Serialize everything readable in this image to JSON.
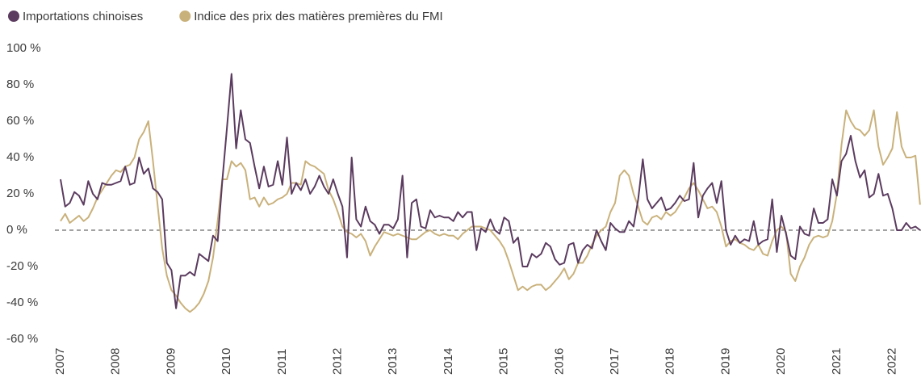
{
  "chart_data": {
    "type": "line",
    "categories": [
      "2007",
      null,
      null,
      null,
      null,
      null,
      null,
      null,
      null,
      null,
      null,
      null,
      "2008",
      null,
      null,
      null,
      null,
      null,
      null,
      null,
      null,
      null,
      null,
      null,
      "2009",
      null,
      null,
      null,
      null,
      null,
      null,
      null,
      null,
      null,
      null,
      null,
      "2010",
      null,
      null,
      null,
      null,
      null,
      null,
      null,
      null,
      null,
      null,
      null,
      "2011",
      null,
      null,
      null,
      null,
      null,
      null,
      null,
      null,
      null,
      null,
      null,
      "2012",
      null,
      null,
      null,
      null,
      null,
      null,
      null,
      null,
      null,
      null,
      null,
      "2013",
      null,
      null,
      null,
      null,
      null,
      null,
      null,
      null,
      null,
      null,
      null,
      "2014",
      null,
      null,
      null,
      null,
      null,
      null,
      null,
      null,
      null,
      null,
      null,
      "2015",
      null,
      null,
      null,
      null,
      null,
      null,
      null,
      null,
      null,
      null,
      null,
      "2016",
      null,
      null,
      null,
      null,
      null,
      null,
      null,
      null,
      null,
      null,
      null,
      "2017",
      null,
      null,
      null,
      null,
      null,
      null,
      null,
      null,
      null,
      null,
      null,
      "2018",
      null,
      null,
      null,
      null,
      null,
      null,
      null,
      null,
      null,
      null,
      null,
      "2019",
      null,
      null,
      null,
      null,
      null,
      null,
      null,
      null,
      null,
      null,
      null,
      "2020",
      null,
      null,
      null,
      null,
      null,
      null,
      null,
      null,
      null,
      null,
      null,
      "2021",
      null,
      null,
      null,
      null,
      null,
      null,
      null,
      null,
      null,
      null,
      null,
      "2022",
      null,
      null,
      null,
      null,
      null,
      null
    ],
    "series": [
      {
        "name": "Importations chinoises",
        "color": "#5b3b5f",
        "values": [
          28,
          13,
          15,
          21,
          19,
          14,
          27,
          20,
          17,
          26,
          25,
          25,
          26,
          27,
          35,
          25,
          26,
          40,
          31,
          34,
          23,
          21,
          17,
          -18,
          -22,
          -43,
          -25,
          -25,
          -23,
          -25,
          -13,
          -15,
          -17,
          -3,
          -6,
          27,
          56,
          86,
          45,
          66,
          50,
          48,
          35,
          23,
          35,
          24,
          25,
          38,
          25,
          51,
          20,
          26,
          22,
          28,
          20,
          24,
          30,
          24,
          20,
          28,
          20,
          13,
          -15,
          40,
          6,
          2,
          13,
          5,
          3,
          -2,
          3,
          3,
          1,
          6,
          30,
          -15,
          15,
          17,
          2,
          1,
          11,
          7,
          8,
          7,
          7,
          5,
          10,
          7,
          10,
          10,
          -11,
          1,
          -1,
          6,
          0,
          -2,
          7,
          5,
          -7,
          -4,
          -20,
          -20,
          -13,
          -15,
          -13,
          -7,
          -9,
          -16,
          -19,
          -18,
          -8,
          -7,
          -18,
          -11,
          -8,
          -10,
          0,
          -6,
          -11,
          4,
          1,
          -1,
          -1,
          5,
          2,
          17,
          39,
          17,
          12,
          15,
          18,
          11,
          12,
          15,
          19,
          16,
          17,
          37,
          7,
          19,
          23,
          26,
          15,
          27,
          0,
          -8,
          -3,
          -7,
          -5,
          -6,
          5,
          -8,
          -6,
          -5,
          17,
          -12,
          8,
          -2,
          -14,
          -16,
          2,
          -2,
          -3,
          12,
          4,
          4,
          6,
          28,
          19,
          38,
          42,
          52,
          38,
          29,
          33,
          18,
          20,
          31,
          19,
          20,
          12,
          0,
          0,
          4,
          1,
          2,
          0
        ]
      },
      {
        "name": "Indice des prix des matières premières du FMI",
        "color": "#c9b17b",
        "values": [
          5,
          9,
          4,
          6,
          8,
          5,
          7,
          12,
          18,
          22,
          26,
          30,
          33,
          32,
          35,
          36,
          40,
          50,
          54,
          60,
          38,
          14,
          -10,
          -25,
          -33,
          -36,
          -40,
          -43,
          -45,
          -43,
          -40,
          -35,
          -28,
          -15,
          5,
          28,
          28,
          38,
          35,
          37,
          33,
          17,
          18,
          13,
          18,
          14,
          15,
          17,
          18,
          20,
          26,
          26,
          25,
          38,
          36,
          35,
          33,
          31,
          22,
          17,
          10,
          2,
          -1,
          -2,
          -4,
          -2,
          -6,
          -14,
          -9,
          -5,
          -1,
          -2,
          -3,
          -2,
          -3,
          -4,
          -5,
          -5,
          -3,
          -1,
          0,
          -2,
          -3,
          -2,
          -3,
          -3,
          -5,
          -2,
          0,
          2,
          2,
          2,
          1,
          0,
          -3,
          -6,
          -10,
          -17,
          -25,
          -33,
          -31,
          -33,
          -31,
          -30,
          -30,
          -33,
          -31,
          -28,
          -25,
          -21,
          -27,
          -24,
          -18,
          -18,
          -14,
          -8,
          -3,
          0,
          2,
          10,
          15,
          30,
          33,
          30,
          20,
          13,
          5,
          3,
          7,
          8,
          6,
          10,
          8,
          10,
          14,
          18,
          23,
          26,
          22,
          17,
          12,
          13,
          10,
          2,
          -9,
          -6,
          -5,
          -7,
          -8,
          -10,
          -11,
          -8,
          -13,
          -14,
          -6,
          0,
          2,
          -1,
          -24,
          -28,
          -20,
          -15,
          -8,
          -4,
          -3,
          -4,
          -3,
          5,
          20,
          47,
          66,
          60,
          56,
          55,
          52,
          55,
          66,
          46,
          36,
          40,
          45,
          65,
          46,
          40,
          40,
          41,
          14
        ]
      }
    ],
    "ylim": [
      -60,
      100
    ],
    "yticks": [
      {
        "value": -60,
        "label": "-60 %"
      },
      {
        "value": -40,
        "label": "-40 %"
      },
      {
        "value": -20,
        "label": "-20 %"
      },
      {
        "value": 0,
        "label": "0 %"
      },
      {
        "value": 20,
        "label": "20 %"
      },
      {
        "value": 40,
        "label": "40 %"
      },
      {
        "value": 60,
        "label": "60 %"
      },
      {
        "value": 80,
        "label": "80 %"
      },
      {
        "value": 100,
        "label": "100 %"
      }
    ],
    "grid": false,
    "legend": "top-left"
  }
}
